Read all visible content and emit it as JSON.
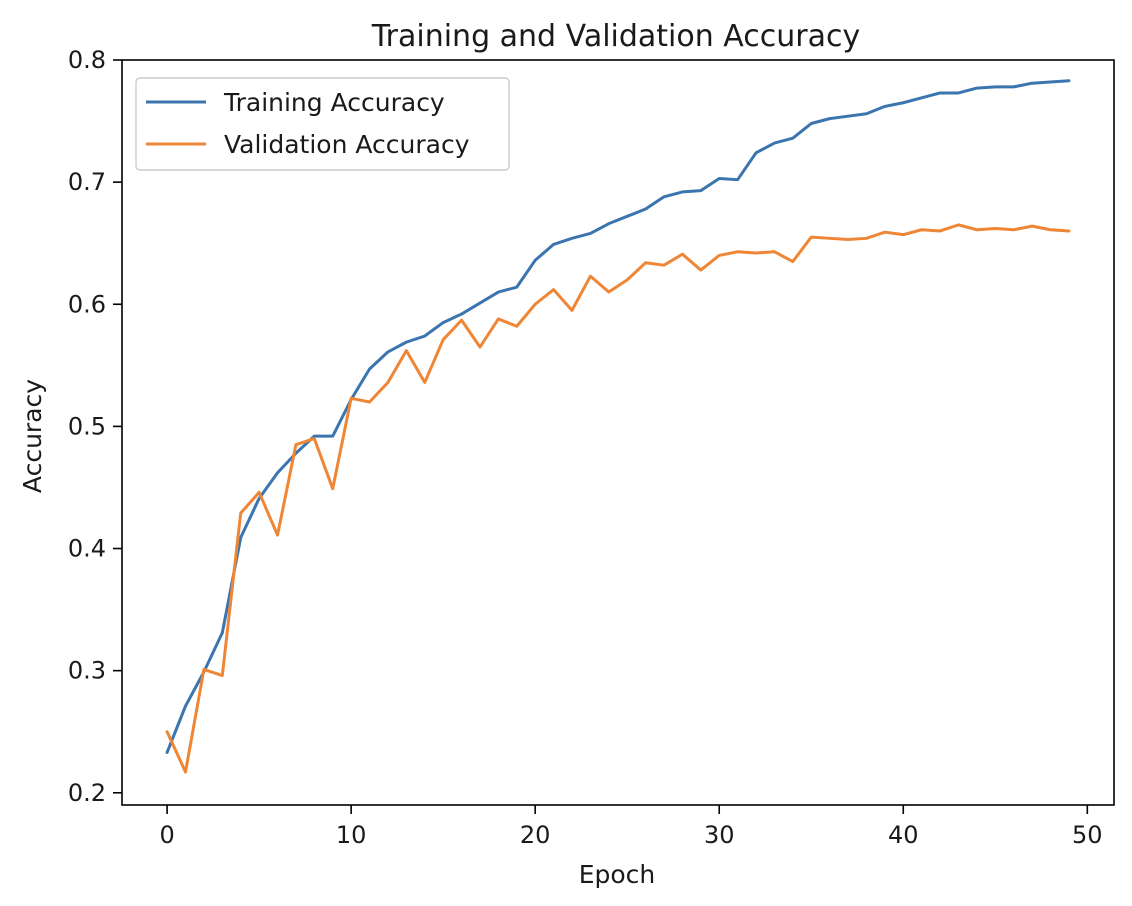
{
  "chart_data": {
    "type": "line",
    "title": "Training and Validation Accuracy",
    "xlabel": "Epoch",
    "ylabel": "Accuracy",
    "xlim": [
      -2.45,
      51.45
    ],
    "ylim": [
      0.19,
      0.8
    ],
    "xticks": [
      0,
      10,
      20,
      30,
      40,
      50
    ],
    "yticks": [
      0.2,
      0.3,
      0.4,
      0.5,
      0.6,
      0.7,
      0.8
    ],
    "grid": false,
    "legend_position": "upper-left",
    "x": [
      0,
      1,
      2,
      3,
      4,
      5,
      6,
      7,
      8,
      9,
      10,
      11,
      12,
      13,
      14,
      15,
      16,
      17,
      18,
      19,
      20,
      21,
      22,
      23,
      24,
      25,
      26,
      27,
      28,
      29,
      30,
      31,
      32,
      33,
      34,
      35,
      36,
      37,
      38,
      39,
      40,
      41,
      42,
      43,
      44,
      45,
      46,
      47,
      48,
      49
    ],
    "series": [
      {
        "name": "Training Accuracy",
        "color": "#3b75af",
        "values": [
          0.233,
          0.271,
          0.299,
          0.331,
          0.409,
          0.441,
          0.462,
          0.478,
          0.492,
          0.492,
          0.522,
          0.547,
          0.561,
          0.569,
          0.574,
          0.585,
          0.592,
          0.601,
          0.61,
          0.614,
          0.636,
          0.649,
          0.654,
          0.658,
          0.666,
          0.672,
          0.678,
          0.688,
          0.692,
          0.693,
          0.703,
          0.702,
          0.724,
          0.732,
          0.736,
          0.748,
          0.752,
          0.754,
          0.756,
          0.762,
          0.765,
          0.769,
          0.773,
          0.773,
          0.777,
          0.778,
          0.778,
          0.781,
          0.782,
          0.783
        ]
      },
      {
        "name": "Validation Accuracy",
        "color": "#ef8636",
        "values": [
          0.25,
          0.217,
          0.301,
          0.296,
          0.429,
          0.446,
          0.411,
          0.485,
          0.49,
          0.449,
          0.523,
          0.52,
          0.536,
          0.562,
          0.536,
          0.571,
          0.587,
          0.565,
          0.588,
          0.582,
          0.6,
          0.612,
          0.595,
          0.623,
          0.61,
          0.62,
          0.634,
          0.632,
          0.641,
          0.628,
          0.64,
          0.643,
          0.642,
          0.643,
          0.635,
          0.655,
          0.654,
          0.653,
          0.654,
          0.659,
          0.657,
          0.661,
          0.66,
          0.665,
          0.661,
          0.662,
          0.661,
          0.664,
          0.661,
          0.66
        ]
      }
    ]
  }
}
